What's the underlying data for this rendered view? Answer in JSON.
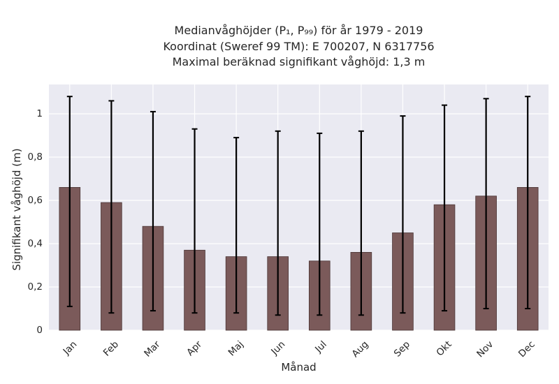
{
  "chart_data": {
    "type": "bar",
    "title_lines": [
      "Medianvåghöjder (P₁, P₉₉) för år 1979 - 2019",
      "Koordinat (Sweref 99 TM): E 700207, N 6317756",
      "Maximal beräknad signifikant våghöjd: 1,3 m"
    ],
    "xlabel": "Månad",
    "ylabel": "Signifikant våghöjd (m)",
    "categories": [
      "Jan",
      "Feb",
      "Mar",
      "Apr",
      "Maj",
      "Jun",
      "Jul",
      "Aug",
      "Sep",
      "Okt",
      "Nov",
      "Dec"
    ],
    "values": [
      0.66,
      0.59,
      0.48,
      0.37,
      0.34,
      0.34,
      0.32,
      0.36,
      0.45,
      0.58,
      0.62,
      0.66
    ],
    "p1": [
      0.11,
      0.08,
      0.09,
      0.08,
      0.08,
      0.07,
      0.07,
      0.07,
      0.08,
      0.09,
      0.1,
      0.1
    ],
    "p99": [
      1.08,
      1.06,
      1.01,
      0.93,
      0.89,
      0.92,
      0.91,
      0.92,
      0.99,
      1.04,
      1.07,
      1.08
    ],
    "yticks": [
      0,
      0.2,
      0.4,
      0.6,
      0.8,
      1.0
    ],
    "ytick_labels": [
      "0",
      "0,2",
      "0,4",
      "0,6",
      "0,8",
      "1"
    ],
    "ylim": [
      0,
      1.13
    ],
    "grid": true,
    "colors": {
      "bar": "#7b5a5a",
      "bar_edge": "#4a3535",
      "plot_background": "#eaeaf2",
      "grid": "#ffffff",
      "error_bar": "#000000"
    }
  }
}
